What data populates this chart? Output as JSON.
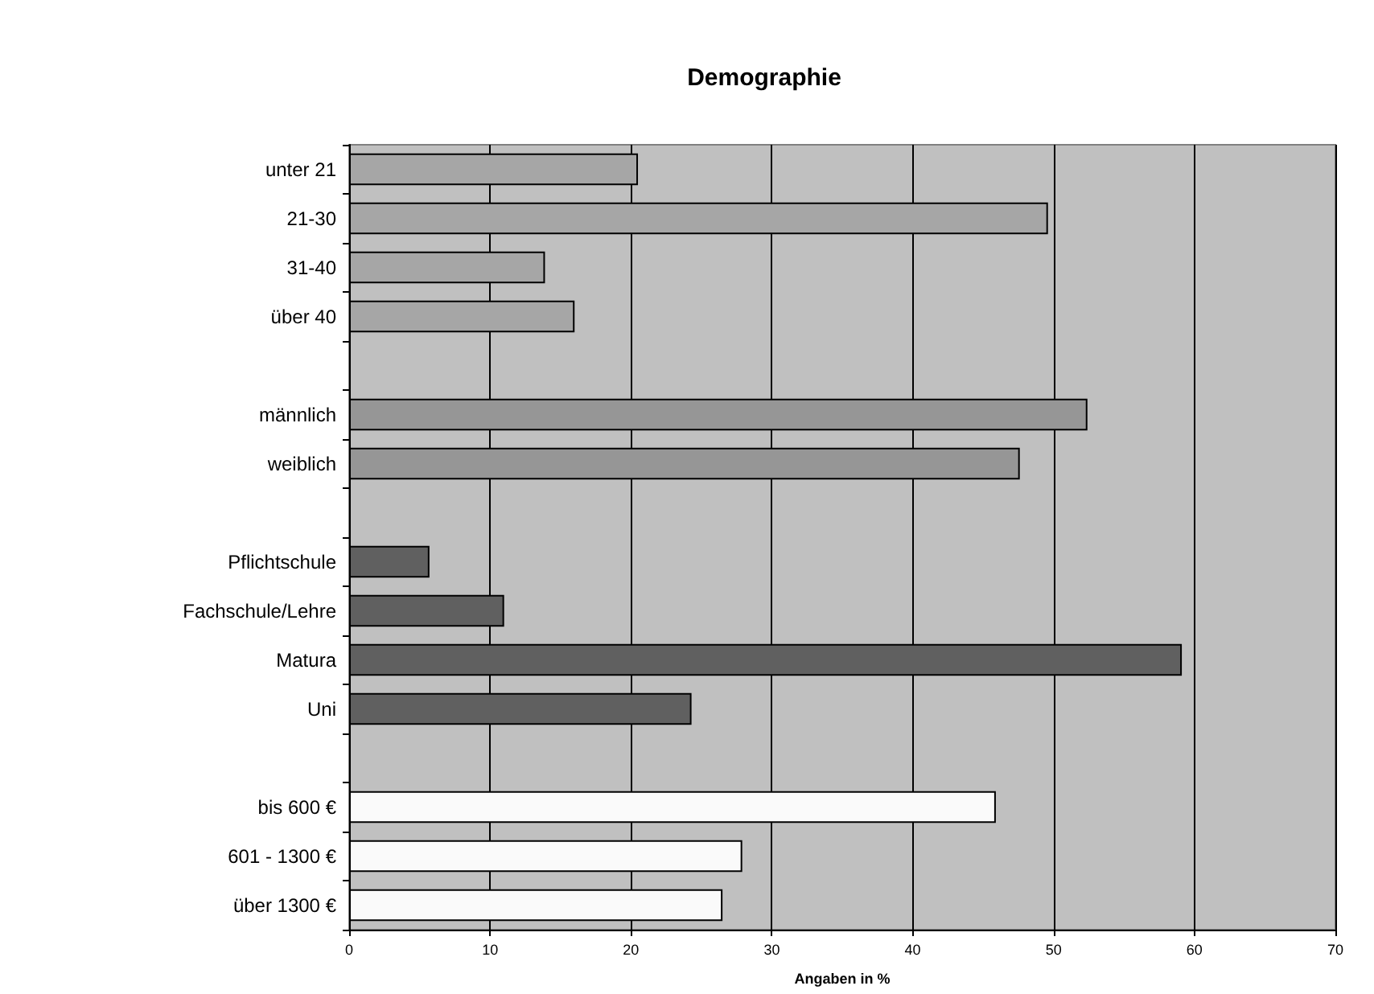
{
  "chart_data": {
    "type": "bar",
    "orientation": "horizontal",
    "title": "Demographie",
    "xlabel": "Angaben in %",
    "categories": [
      "unter 21",
      "21-30",
      "31-40",
      "über 40",
      null,
      "männlich",
      "weiblich",
      null,
      "Pflichtschule",
      "Fachschule/Lehre",
      "Matura",
      "Uni",
      null,
      "bis 600 €",
      "601 - 1300 €",
      "über 1300 €"
    ],
    "values": [
      20.5,
      49.6,
      13.9,
      16.0,
      null,
      52.4,
      47.6,
      null,
      5.7,
      11.0,
      59.1,
      24.3,
      null,
      45.9,
      27.9,
      26.5
    ],
    "colors": [
      "#a6a6a6",
      "#a6a6a6",
      "#a6a6a6",
      "#a6a6a6",
      null,
      "#969696",
      "#969696",
      null,
      "#606060",
      "#606060",
      "#606060",
      "#606060",
      null,
      "#fafafa",
      "#fafafa",
      "#fafafa"
    ],
    "xlim": [
      0,
      70
    ],
    "xticks": [
      0,
      10,
      20,
      30,
      40,
      50,
      60,
      70
    ],
    "grid": "x"
  }
}
